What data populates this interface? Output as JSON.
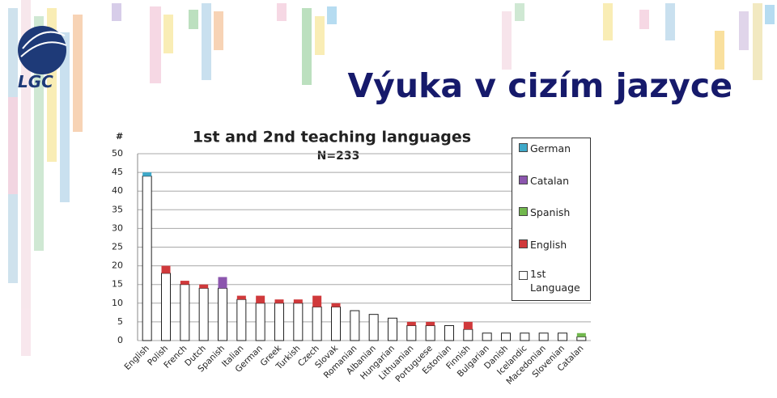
{
  "slide_title": "Výuka v cizím jazyce",
  "logo": "LGC",
  "chart_data": {
    "type": "stacked_bar",
    "title": "1st and 2nd teaching languages",
    "subtitle": "N=233",
    "y_label": "#",
    "categories": [
      "English",
      "Polish",
      "French",
      "Dutch",
      "Spanish",
      "Italian",
      "German",
      "Greek",
      "Turkish",
      "Czech",
      "Slovak",
      "Romanian",
      "Albanian",
      "Hungarian",
      "Lithuanian",
      "Portuguese",
      "Estonian",
      "Finnish",
      "Bulgarian",
      "Danish",
      "Icelandic",
      "Macedonian",
      "Slovenian",
      "Catalan"
    ],
    "series": [
      {
        "name": "1st Language",
        "color": "#ffffff",
        "values": [
          44,
          18,
          15,
          14,
          14,
          11,
          10,
          10,
          10,
          9,
          9,
          8,
          7,
          6,
          4,
          4,
          4,
          3,
          2,
          2,
          2,
          2,
          2,
          1
        ]
      },
      {
        "name": "English",
        "color": "#d0393b",
        "values": [
          0,
          2,
          1,
          1,
          0,
          1,
          2,
          1,
          1,
          3,
          1,
          0,
          0,
          0,
          1,
          1,
          0,
          2,
          0,
          0,
          0,
          0,
          0,
          0
        ]
      },
      {
        "name": "Spanish",
        "color": "#72b84e",
        "values": [
          0,
          0,
          0,
          0,
          0,
          0,
          0,
          0,
          0,
          0,
          0,
          0,
          0,
          0,
          0,
          0,
          0,
          0,
          0,
          0,
          0,
          0,
          0,
          1
        ]
      },
      {
        "name": "Catalan",
        "color": "#8c56ae",
        "values": [
          0,
          0,
          0,
          0,
          3,
          0,
          0,
          0,
          0,
          0,
          0,
          0,
          0,
          0,
          0,
          0,
          0,
          0,
          0,
          0,
          0,
          0,
          0,
          0
        ]
      },
      {
        "name": "German",
        "color": "#3fa9c9",
        "values": [
          1,
          0,
          0,
          0,
          0,
          0,
          0,
          0,
          0,
          0,
          0,
          0,
          0,
          0,
          0,
          0,
          0,
          0,
          0,
          0,
          0,
          0,
          0,
          0
        ]
      }
    ],
    "ylim": [
      0,
      50
    ],
    "yticks": [
      0,
      5,
      10,
      15,
      20,
      25,
      30,
      35,
      40,
      45,
      50
    ],
    "grid": true,
    "legend": "right"
  }
}
